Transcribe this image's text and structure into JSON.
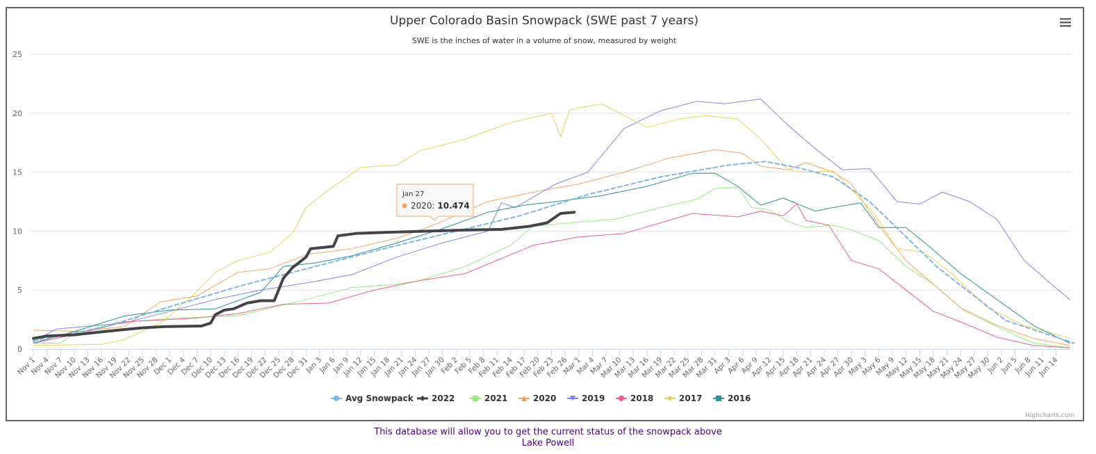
{
  "chart_data": {
    "type": "line",
    "title": "Upper Colorado Basin Snowpack (SWE past 7 years)",
    "subtitle": "SWE is the inches of water in a volume of snow, measured by weight",
    "xlabel": "",
    "ylabel": "",
    "ylim": [
      0,
      25
    ],
    "yticks": [
      "0",
      "5",
      "10",
      "15",
      "20",
      "25"
    ],
    "ytick_values": [
      0,
      5,
      10,
      15,
      20,
      25
    ],
    "grid": true,
    "legend_position": "bottom-center",
    "x_day_range": [
      0,
      228
    ],
    "xtick_labels": [
      "Nov 1",
      "Nov 4",
      "Nov 7",
      "Nov 10",
      "Nov 13",
      "Nov 16",
      "Nov 19",
      "Nov 22",
      "Nov 25",
      "Nov 28",
      "Dec 1",
      "Dec 4",
      "Dec 7",
      "Dec 10",
      "Dec 13",
      "Dec 16",
      "Dec 19",
      "Dec 22",
      "Dec 25",
      "Dec 28",
      "Dec 31",
      "Jan 3",
      "Jan 6",
      "Jan 9",
      "Jan 12",
      "Jan 15",
      "Jan 18",
      "Jan 21",
      "Jan 24",
      "Jan 27",
      "Jan 30",
      "Feb 2",
      "Feb 5",
      "Feb 8",
      "Feb 11",
      "Feb 14",
      "Feb 17",
      "Feb 20",
      "Feb 23",
      "Feb 26",
      "Mar 1",
      "Mar 4",
      "Mar 7",
      "Mar 10",
      "Mar 13",
      "Mar 16",
      "Mar 19",
      "Mar 22",
      "Mar 25",
      "Mar 28",
      "Mar 31",
      "Apr 3",
      "Apr 6",
      "Apr 9",
      "Apr 12",
      "Apr 15",
      "Apr 18",
      "Apr 21",
      "Apr 24",
      "Apr 27",
      "Apr 30",
      "May 3",
      "May 6",
      "May 9",
      "May 12",
      "May 15",
      "May 18",
      "May 21",
      "May 24",
      "May 27",
      "May 30",
      "Jun 2",
      "Jun 5",
      "Jun 8",
      "Jun 11",
      "Jun 14"
    ],
    "xtick_step_days": 3,
    "series": [
      {
        "name": "Avg Snowpack",
        "color": "#7cb5ec",
        "dash": true,
        "width": 2,
        "marker": "circle",
        "days": [
          0,
          16,
          31,
          46,
          61,
          76,
          92,
          107,
          122,
          138,
          153,
          161,
          168,
          176,
          184,
          199,
          214,
          229
        ],
        "values": [
          0.7,
          1.9,
          3.7,
          5.4,
          6.9,
          8.4,
          9.9,
          11.3,
          13.1,
          14.6,
          15.6,
          15.9,
          15.4,
          14.6,
          12.5,
          6.9,
          2.4,
          0.5
        ]
      },
      {
        "name": "2022",
        "color": "#434348",
        "dash": false,
        "width": 4,
        "marker": "diamond",
        "days": [
          0,
          3,
          9,
          16,
          20,
          24,
          29,
          37,
          39,
          40,
          42,
          44,
          47,
          50,
          53,
          55,
          57,
          60,
          61,
          66,
          67,
          71,
          78,
          87,
          96,
          103,
          109,
          113,
          116,
          119
        ],
        "values": [
          0.9,
          1.1,
          1.2,
          1.5,
          1.65,
          1.8,
          1.9,
          1.95,
          2.2,
          2.9,
          3.3,
          3.4,
          3.9,
          4.1,
          4.1,
          6.0,
          6.9,
          7.8,
          8.5,
          8.7,
          9.6,
          9.8,
          9.9,
          10.0,
          10.1,
          10.15,
          10.4,
          10.7,
          11.5,
          11.6
        ]
      },
      {
        "name": "2021",
        "color": "#90ed7d",
        "dash": false,
        "width": 1,
        "marker": "square",
        "days": [
          0,
          6,
          9,
          12,
          18,
          30,
          45,
          60,
          70,
          80,
          85,
          95,
          105,
          110,
          118,
          128,
          138,
          146,
          150,
          155,
          158,
          162,
          166,
          170,
          176,
          180,
          186,
          192,
          198,
          205,
          212,
          220,
          228
        ],
        "values": [
          0.5,
          0.5,
          1.3,
          1.6,
          2.2,
          2.6,
          2.8,
          4.2,
          5.2,
          5.5,
          5.8,
          7.0,
          8.8,
          10.4,
          10.7,
          11.0,
          12.0,
          12.7,
          13.6,
          13.7,
          12.0,
          11.8,
          10.8,
          10.3,
          10.5,
          10.1,
          9.2,
          7.0,
          5.5,
          3.2,
          1.9,
          0.5,
          0.1
        ]
      },
      {
        "name": "2020",
        "color": "#f7a35c",
        "dash": false,
        "width": 1,
        "marker": "triangle",
        "days": [
          0,
          10,
          20,
          28,
          36,
          45,
          52,
          60,
          70,
          80,
          88,
          100,
          110,
          120,
          130,
          140,
          150,
          156,
          160,
          166,
          170,
          176,
          180,
          186,
          192,
          198,
          204,
          212,
          220,
          228
        ],
        "values": [
          1.6,
          1.5,
          1.9,
          4.0,
          4.5,
          6.5,
          6.8,
          8.0,
          8.5,
          9.4,
          10.5,
          12.5,
          13.3,
          14.0,
          15.0,
          16.2,
          16.9,
          16.6,
          15.5,
          15.2,
          15.8,
          15.0,
          14.0,
          10.5,
          7.5,
          5.5,
          3.5,
          2.0,
          0.9,
          0.3
        ]
      },
      {
        "name": "2019",
        "color": "#8085e9",
        "dash": false,
        "width": 1,
        "marker": "triangle-down",
        "days": [
          0,
          5,
          20,
          30,
          40,
          50,
          60,
          70,
          80,
          90,
          100,
          103,
          106,
          115,
          122,
          130,
          138,
          146,
          152,
          160,
          166,
          172,
          178,
          184,
          190,
          195,
          200,
          206,
          212,
          218,
          224,
          228
        ],
        "values": [
          0.6,
          1.7,
          2.2,
          3.2,
          4.2,
          5.0,
          5.6,
          6.3,
          7.8,
          9.0,
          10.0,
          12.4,
          12.0,
          14.0,
          15.0,
          18.7,
          20.2,
          21.0,
          20.8,
          21.2,
          19.0,
          17.0,
          15.2,
          15.3,
          12.5,
          12.3,
          13.3,
          12.5,
          11.0,
          7.5,
          5.5,
          4.2
        ]
      },
      {
        "name": "2018",
        "color": "#f15c80",
        "dash": false,
        "width": 1,
        "marker": "circle",
        "days": [
          0,
          10,
          20,
          35,
          45,
          55,
          65,
          75,
          85,
          95,
          110,
          120,
          130,
          138,
          145,
          155,
          160,
          165,
          168,
          170,
          175,
          180,
          186,
          192,
          198,
          204,
          212,
          220,
          228
        ],
        "values": [
          0.5,
          1.3,
          2.3,
          2.6,
          3.0,
          3.8,
          3.9,
          5.0,
          5.8,
          6.4,
          8.8,
          9.5,
          9.8,
          10.7,
          11.5,
          11.2,
          11.7,
          11.3,
          12.3,
          10.9,
          10.5,
          7.5,
          6.8,
          5.0,
          3.2,
          2.3,
          1.0,
          0.3,
          0.1
        ]
      },
      {
        "name": "2017",
        "color": "#e4d354",
        "dash": false,
        "width": 1,
        "marker": "diamond",
        "days": [
          0,
          15,
          20,
          28,
          35,
          40,
          45,
          52,
          57,
          60,
          65,
          72,
          80,
          85,
          95,
          105,
          114,
          116,
          118,
          125,
          135,
          142,
          148,
          155,
          160,
          166,
          170,
          176,
          185,
          190,
          196,
          202,
          210,
          218,
          228
        ],
        "values": [
          0.3,
          0.4,
          0.8,
          2.2,
          4.5,
          6.5,
          7.5,
          8.2,
          9.8,
          12.0,
          13.5,
          15.4,
          15.6,
          16.8,
          17.8,
          19.2,
          20.0,
          18.0,
          20.3,
          20.8,
          18.8,
          19.5,
          19.8,
          19.5,
          17.8,
          15.2,
          15.0,
          15.1,
          11.5,
          8.5,
          8.2,
          6.4,
          3.5,
          2.0,
          0.9
        ]
      },
      {
        "name": "2016",
        "color": "#2b908f",
        "dash": false,
        "width": 1,
        "marker": "square",
        "days": [
          0,
          10,
          20,
          30,
          40,
          50,
          55,
          62,
          70,
          80,
          90,
          100,
          108,
          115,
          125,
          135,
          145,
          150,
          155,
          160,
          165,
          172,
          176,
          182,
          186,
          192,
          198,
          204,
          212,
          220,
          228
        ],
        "values": [
          0.5,
          1.6,
          2.8,
          3.3,
          3.4,
          4.8,
          7.0,
          7.3,
          7.9,
          9.0,
          10.2,
          11.6,
          12.2,
          12.5,
          13.0,
          13.8,
          14.9,
          14.9,
          13.8,
          12.2,
          12.8,
          11.7,
          12.0,
          12.4,
          10.3,
          10.3,
          8.4,
          6.4,
          4.2,
          2.0,
          0.5
        ]
      }
    ],
    "tooltip": {
      "date": "Jan 27",
      "series": "2020",
      "value": "10.474",
      "label_sep": ": ",
      "day": 87
    }
  },
  "menu_icon": "hamburger-menu-icon",
  "credits": "Highcharts.com",
  "footer": {
    "line1": "This database will allow you to get the current status of the snowpack above",
    "line2": "Lake Powell"
  }
}
